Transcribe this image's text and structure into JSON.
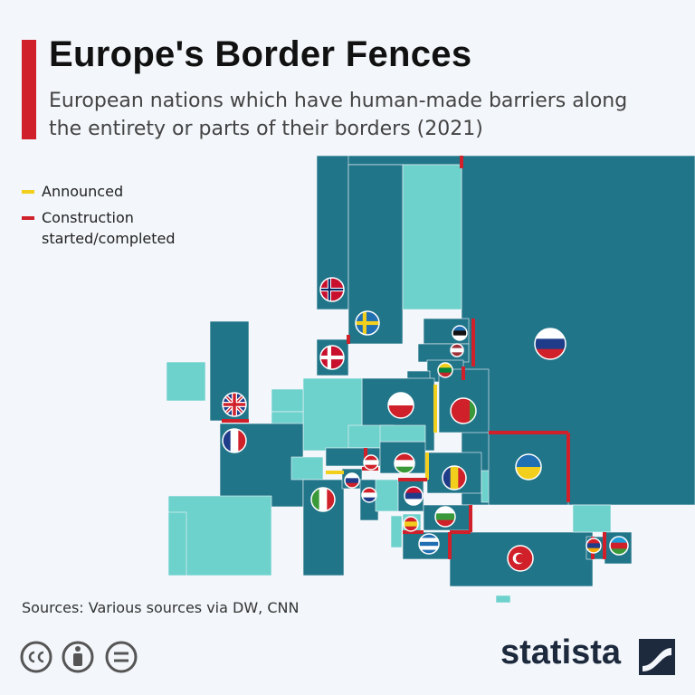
{
  "header": {
    "title": "Europe's Border Fences",
    "subtitle": "European nations which have human-made barriers along the entirety or parts of their borders (2021)"
  },
  "legend": [
    {
      "label": "Announced",
      "color": "#f2cf1d"
    },
    {
      "label": "Construction started/completed",
      "color": "#d0202a"
    }
  ],
  "footer": {
    "source": "Sources: Various sources via DW, CNN",
    "brand": "statista"
  }
}
